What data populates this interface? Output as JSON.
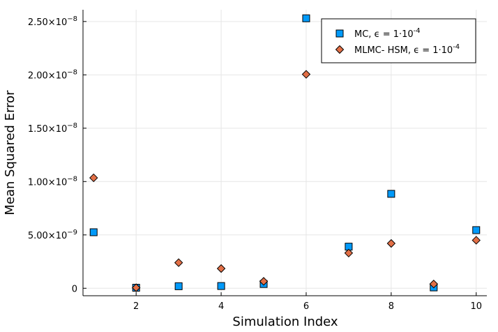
{
  "chart_data": {
    "type": "scatter",
    "title": "",
    "xlabel": "Simulation Index",
    "ylabel": "Mean Squared Error",
    "xlim": [
      0.75,
      10.25
    ],
    "ylim": [
      -7e-10,
      2.61e-08
    ],
    "grid": true,
    "legend_position": "top-right",
    "x_ticks": [
      {
        "value": 2,
        "label": "2"
      },
      {
        "value": 4,
        "label": "4"
      },
      {
        "value": 6,
        "label": "6"
      },
      {
        "value": 8,
        "label": "8"
      },
      {
        "value": 10,
        "label": "10"
      }
    ],
    "y_ticks": [
      {
        "value": 0,
        "mantissa": "0",
        "exponent": ""
      },
      {
        "value": 5e-09,
        "mantissa": "5.00×10",
        "exponent": "−9"
      },
      {
        "value": 1e-08,
        "mantissa": "1.00×10",
        "exponent": "−8"
      },
      {
        "value": 1.5e-08,
        "mantissa": "1.50×10",
        "exponent": "−8"
      },
      {
        "value": 2e-08,
        "mantissa": "2.00×10",
        "exponent": "−8"
      },
      {
        "value": 2.5e-08,
        "mantissa": "2.50×10",
        "exponent": "−8"
      }
    ],
    "x": [
      1,
      2,
      3,
      4,
      5,
      6,
      7,
      8,
      9,
      10
    ],
    "series": [
      {
        "name": "MC",
        "legend_text": "MC, ϵ = 1·10",
        "legend_exponent": "-4",
        "marker": "square",
        "color": "#009AFA",
        "values": [
          5.25e-09,
          5e-11,
          1.9e-10,
          2.1e-10,
          4e-10,
          2.53e-08,
          3.9e-09,
          8.85e-09,
          8e-11,
          5.45e-09
        ]
      },
      {
        "name": "MLMC-HSM",
        "legend_text": "MLMC- HSM, ϵ = 1·10",
        "legend_exponent": "-4",
        "marker": "diamond",
        "color": "#E26F46",
        "values": [
          1.035e-08,
          5e-11,
          2.4e-09,
          1.85e-09,
          6.5e-10,
          2.005e-08,
          3.3e-09,
          4.2e-09,
          4e-10,
          4.5e-09
        ]
      }
    ]
  }
}
